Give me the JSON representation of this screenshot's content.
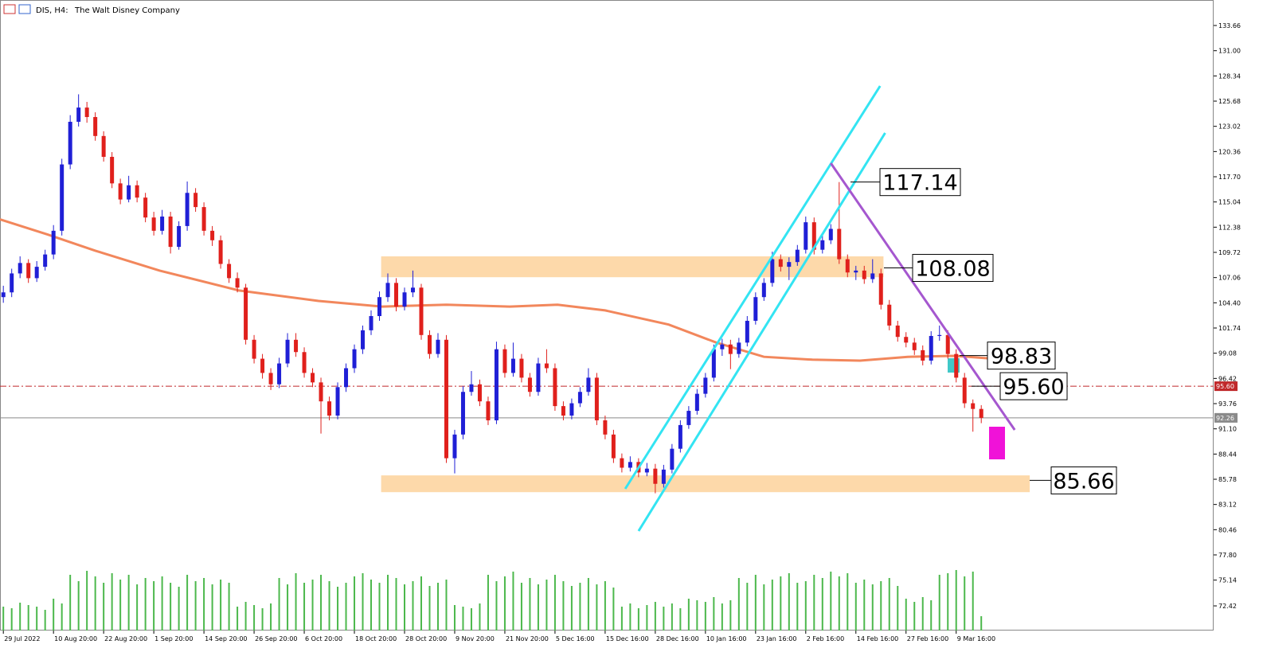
{
  "chart_data": {
    "type": "candlestick",
    "symbol": "DIS, H4:",
    "title": "The Walt Disney Company",
    "up_color": "#1f1fd6",
    "down_color": "#e0201c",
    "volume_color": "#4cb84c",
    "xlim": [
      -0.4,
      144.8
    ],
    "ylim": [
      69.82,
      136.35
    ],
    "yticks": [
      {
        "value": 133.66,
        "label": "133.66"
      },
      {
        "value": 131,
        "label": "131.00"
      },
      128.34,
      125.68,
      123.02,
      120.36,
      {
        "value": 117.7,
        "label": "117.70"
      },
      115.04,
      112.38,
      109.72,
      107.06,
      {
        "value": 104.4,
        "label": "104.40"
      },
      101.74,
      99.08,
      96.42,
      93.76,
      {
        "value": 91.1,
        "label": "91.10"
      },
      88.44,
      85.78,
      83.12,
      80.46,
      {
        "value": 77.8,
        "label": "77.80"
      },
      75.14,
      72.42
    ],
    "categories": [
      "29 Jul 2022",
      null,
      null,
      null,
      null,
      null,
      "10 Aug 20:00",
      null,
      null,
      null,
      null,
      null,
      "22 Aug 20:00",
      null,
      null,
      null,
      null,
      null,
      "1 Sep 20:00",
      null,
      null,
      null,
      null,
      null,
      "14 Sep 20:00",
      null,
      null,
      null,
      null,
      null,
      "26 Sep 20:00",
      null,
      null,
      null,
      null,
      null,
      "6 Oct 20:00",
      null,
      null,
      null,
      null,
      null,
      "18 Oct 20:00",
      null,
      null,
      null,
      null,
      null,
      "28 Oct 20:00",
      null,
      null,
      null,
      null,
      null,
      "9 Nov 20:00",
      null,
      null,
      null,
      null,
      null,
      "21 Nov 20:00",
      null,
      null,
      null,
      null,
      null,
      "5 Dec 16:00",
      null,
      null,
      null,
      null,
      null,
      "15 Dec 16:00",
      null,
      null,
      null,
      null,
      null,
      "28 Dec 16:00",
      null,
      null,
      null,
      null,
      null,
      "10 Jan 16:00",
      null,
      null,
      null,
      null,
      null,
      "23 Jan 16:00",
      null,
      null,
      null,
      null,
      null,
      "2 Feb 16:00",
      null,
      null,
      null,
      null,
      null,
      "14 Feb 16:00",
      null,
      null,
      null,
      null,
      null,
      "27 Feb 16:00",
      null,
      null,
      null,
      null,
      null,
      "9 Mar 16:00",
      null,
      null,
      null
    ],
    "ohlc": [
      [
        105.0,
        106.2,
        104.4,
        105.5
      ],
      [
        105.5,
        108.0,
        105.0,
        107.5
      ],
      [
        107.5,
        109.3,
        107.0,
        108.6
      ],
      [
        108.6,
        109.0,
        106.5,
        107.0
      ],
      [
        107.0,
        108.8,
        106.6,
        108.2
      ],
      [
        108.2,
        110.0,
        107.8,
        109.5
      ],
      [
        109.5,
        112.6,
        109.0,
        112.0
      ],
      [
        112.0,
        119.6,
        111.5,
        119.0
      ],
      [
        119.0,
        124.2,
        118.5,
        123.5
      ],
      [
        123.5,
        126.4,
        123.0,
        125.0
      ],
      [
        125.0,
        125.6,
        123.4,
        124.0
      ],
      [
        124.0,
        124.5,
        121.5,
        122.0
      ],
      [
        122.0,
        122.5,
        119.3,
        119.8
      ],
      [
        119.8,
        120.3,
        116.5,
        117.0
      ],
      [
        117.0,
        117.5,
        114.8,
        115.3
      ],
      [
        115.3,
        117.8,
        115.0,
        116.8
      ],
      [
        116.8,
        117.3,
        115.0,
        115.5
      ],
      [
        115.5,
        116.0,
        112.9,
        113.4
      ],
      [
        113.4,
        114.0,
        111.5,
        112.0
      ],
      [
        112.0,
        114.2,
        111.6,
        113.5
      ],
      [
        113.5,
        114.0,
        109.6,
        110.3
      ],
      [
        110.3,
        113.0,
        110.0,
        112.5
      ],
      [
        112.5,
        117.2,
        112.0,
        116.0
      ],
      [
        116.0,
        116.5,
        114.0,
        114.5
      ],
      [
        114.5,
        115.0,
        111.5,
        112.0
      ],
      [
        112.0,
        112.5,
        110.4,
        111.0
      ],
      [
        111.0,
        111.5,
        108.0,
        108.5
      ],
      [
        108.5,
        109.0,
        106.5,
        107.0
      ],
      [
        107.0,
        107.6,
        105.5,
        106.0
      ],
      [
        106.0,
        106.4,
        100.0,
        100.5
      ],
      [
        100.5,
        101.0,
        98.0,
        98.5
      ],
      [
        98.5,
        99.0,
        96.4,
        97.0
      ],
      [
        97.0,
        97.5,
        95.2,
        95.8
      ],
      [
        95.8,
        98.6,
        95.4,
        98.0
      ],
      [
        98.0,
        101.2,
        97.6,
        100.5
      ],
      [
        100.5,
        101.2,
        98.7,
        99.2
      ],
      [
        99.2,
        99.7,
        96.5,
        97.0
      ],
      [
        97.0,
        97.5,
        95.5,
        96.0
      ],
      [
        96.0,
        96.5,
        90.6,
        94.0
      ],
      [
        94.0,
        94.5,
        92.0,
        92.5
      ],
      [
        92.5,
        96.0,
        92.1,
        95.5
      ],
      [
        95.5,
        98.0,
        95.0,
        97.5
      ],
      [
        97.5,
        100.0,
        97.0,
        99.5
      ],
      [
        99.5,
        102.0,
        99.0,
        101.5
      ],
      [
        101.5,
        103.6,
        101.0,
        103.0
      ],
      [
        103.0,
        105.6,
        102.5,
        105.0
      ],
      [
        105.0,
        107.5,
        104.5,
        106.5
      ],
      [
        106.5,
        107.0,
        103.5,
        104.0
      ],
      [
        104.0,
        106.0,
        103.6,
        105.5
      ],
      [
        105.5,
        107.8,
        105.0,
        106.0
      ],
      [
        106.0,
        106.4,
        100.5,
        101.0
      ],
      [
        101.0,
        101.5,
        98.5,
        99.0
      ],
      [
        99.0,
        101.2,
        98.6,
        100.5
      ],
      [
        100.5,
        101.0,
        87.5,
        88.0
      ],
      [
        88.0,
        91.0,
        86.4,
        90.5
      ],
      [
        90.5,
        95.6,
        90.0,
        95.0
      ],
      [
        95.0,
        97.2,
        94.6,
        95.8
      ],
      [
        95.8,
        96.3,
        93.5,
        94.0
      ],
      [
        94.0,
        94.5,
        91.5,
        92.0
      ],
      [
        92.0,
        100.3,
        91.6,
        99.5
      ],
      [
        99.5,
        100.0,
        96.5,
        97.0
      ],
      [
        97.0,
        100.2,
        96.6,
        98.5
      ],
      [
        98.5,
        99.0,
        96.0,
        96.5
      ],
      [
        96.5,
        97.0,
        94.5,
        95.0
      ],
      [
        95.0,
        98.6,
        94.6,
        98.0
      ],
      [
        98.0,
        99.5,
        97.0,
        97.5
      ],
      [
        97.5,
        98.0,
        93.0,
        93.5
      ],
      [
        93.5,
        94.0,
        92.0,
        92.5
      ],
      [
        92.5,
        94.3,
        92.1,
        93.8
      ],
      [
        93.8,
        95.5,
        93.4,
        95.0
      ],
      [
        95.0,
        97.5,
        94.6,
        96.5
      ],
      [
        96.5,
        97.0,
        91.5,
        92.0
      ],
      [
        92.0,
        92.5,
        90.0,
        90.5
      ],
      [
        90.5,
        91.0,
        87.5,
        88.0
      ],
      [
        88.0,
        88.5,
        86.5,
        87.0
      ],
      [
        87.0,
        88.2,
        86.6,
        87.6
      ],
      [
        87.6,
        88.0,
        86.0,
        86.5
      ],
      [
        86.5,
        87.5,
        86.1,
        86.9
      ],
      [
        86.9,
        87.4,
        84.3,
        85.3
      ],
      [
        85.3,
        87.3,
        84.9,
        86.8
      ],
      [
        86.8,
        89.5,
        86.4,
        89.0
      ],
      [
        89.0,
        92.0,
        88.6,
        91.5
      ],
      [
        91.5,
        93.5,
        91.1,
        93.0
      ],
      [
        93.0,
        95.3,
        92.6,
        94.8
      ],
      [
        94.8,
        97.0,
        94.4,
        96.5
      ],
      [
        96.5,
        100.0,
        96.1,
        99.5
      ],
      [
        99.5,
        100.6,
        98.8,
        100.0
      ],
      [
        100.0,
        100.5,
        97.4,
        99.0
      ],
      [
        99.0,
        100.7,
        98.6,
        100.2
      ],
      [
        100.2,
        103.0,
        99.8,
        102.5
      ],
      [
        102.5,
        105.5,
        102.1,
        105.0
      ],
      [
        105.0,
        107.0,
        104.6,
        106.5
      ],
      [
        106.5,
        109.8,
        106.1,
        109.0
      ],
      [
        109.0,
        109.5,
        107.7,
        108.2
      ],
      [
        108.2,
        109.2,
        106.8,
        108.7
      ],
      [
        108.7,
        110.5,
        108.3,
        110.0
      ],
      [
        110.0,
        113.5,
        109.6,
        112.9
      ],
      [
        112.9,
        113.4,
        109.5,
        110.0
      ],
      [
        110.0,
        111.5,
        109.6,
        111.0
      ],
      [
        111.0,
        112.7,
        110.6,
        112.2
      ],
      [
        112.2,
        117.14,
        108.5,
        109.0
      ],
      [
        109.0,
        109.5,
        107.1,
        107.6
      ],
      [
        107.6,
        108.3,
        106.8,
        107.8
      ],
      [
        107.8,
        108.3,
        106.4,
        106.9
      ],
      [
        106.9,
        109.0,
        106.5,
        107.5
      ],
      [
        107.5,
        108.0,
        103.7,
        104.2
      ],
      [
        104.2,
        104.7,
        101.5,
        102.0
      ],
      [
        102.0,
        102.5,
        100.3,
        100.8
      ],
      [
        100.8,
        101.3,
        99.7,
        100.2
      ],
      [
        100.2,
        100.7,
        98.9,
        99.4
      ],
      [
        99.4,
        99.9,
        97.8,
        98.3
      ],
      [
        98.3,
        101.4,
        97.9,
        100.9
      ],
      [
        100.9,
        102.0,
        100.4,
        101.0
      ],
      [
        101.0,
        101.5,
        98.5,
        99.0
      ],
      [
        99.0,
        99.5,
        96.0,
        96.5
      ],
      [
        96.5,
        97.0,
        93.3,
        93.8
      ],
      [
        93.8,
        94.2,
        90.8,
        93.2
      ],
      [
        93.2,
        93.6,
        91.7,
        92.26
      ]
    ],
    "volume": [
      30,
      28,
      35,
      32,
      30,
      26,
      40,
      34,
      70,
      62,
      75,
      68,
      60,
      72,
      64,
      70,
      58,
      66,
      62,
      68,
      60,
      55,
      70,
      62,
      66,
      58,
      64,
      60,
      30,
      36,
      32,
      28,
      34,
      66,
      58,
      72,
      60,
      64,
      70,
      62,
      55,
      60,
      68,
      72,
      64,
      60,
      70,
      66,
      58,
      62,
      68,
      56,
      60,
      64,
      32,
      30,
      28,
      34,
      70,
      62,
      68,
      74,
      60,
      66,
      58,
      64,
      70,
      62,
      56,
      60,
      66,
      58,
      62,
      54,
      30,
      34,
      28,
      32,
      36,
      30,
      34,
      28,
      40,
      38,
      36,
      42,
      34,
      38,
      66,
      60,
      70,
      58,
      64,
      68,
      72,
      60,
      62,
      70,
      66,
      74,
      68,
      72,
      60,
      64,
      58,
      62,
      66,
      56,
      40,
      36,
      42,
      38,
      70,
      72,
      76,
      68,
      74,
      18
    ],
    "ma": {
      "color": "#f2875c",
      "x": [
        -0.4,
        5.3,
        11,
        18.7,
        28.2,
        37.7,
        45.3,
        53,
        60.6,
        66.3,
        72,
        79.6,
        85.3,
        91,
        96.8,
        102.5,
        108.2,
        113.9,
        117.7
      ],
      "values": [
        113.2,
        111.6,
        109.9,
        107.8,
        105.7,
        104.6,
        104.0,
        104.2,
        104.0,
        104.2,
        103.6,
        102.1,
        100.2,
        98.7,
        98.4,
        98.3,
        98.7,
        98.8,
        98.55
      ]
    },
    "zones": [
      {
        "color": "#fdd9aa",
        "x": [
          45.2,
          105.3
        ],
        "values": [
          107.1,
          109.3
        ]
      },
      {
        "color": "#fdd9aa",
        "x": [
          45.2,
          122.8
        ],
        "values": [
          84.42,
          86.19
        ]
      }
    ],
    "trendlines": [
      {
        "color": "#33e4f2",
        "x": [
          74.4,
          104.9
        ],
        "values": [
          84.77,
          127.28
        ]
      },
      {
        "color": "#33e4f2",
        "x": [
          76,
          105.5
        ],
        "values": [
          80.32,
          122.32
        ]
      },
      {
        "color": "#a557cf",
        "x": [
          99,
          121
        ],
        "values": [
          119.13,
          90.99
        ]
      }
    ],
    "hlines": [
      {
        "value": 95.6,
        "label": "95.60",
        "color": "#c0282a",
        "dash": true
      },
      {
        "value": 92.26,
        "color": "#8a8a8a",
        "dash": false
      }
    ],
    "price_labels": [
      {
        "value": 117.14
      },
      {
        "value": 108.08
      },
      {
        "value": 98.83
      },
      {
        "value": 95.6,
        "label": "95.60"
      },
      {
        "value": 85.66
      }
    ]
  }
}
